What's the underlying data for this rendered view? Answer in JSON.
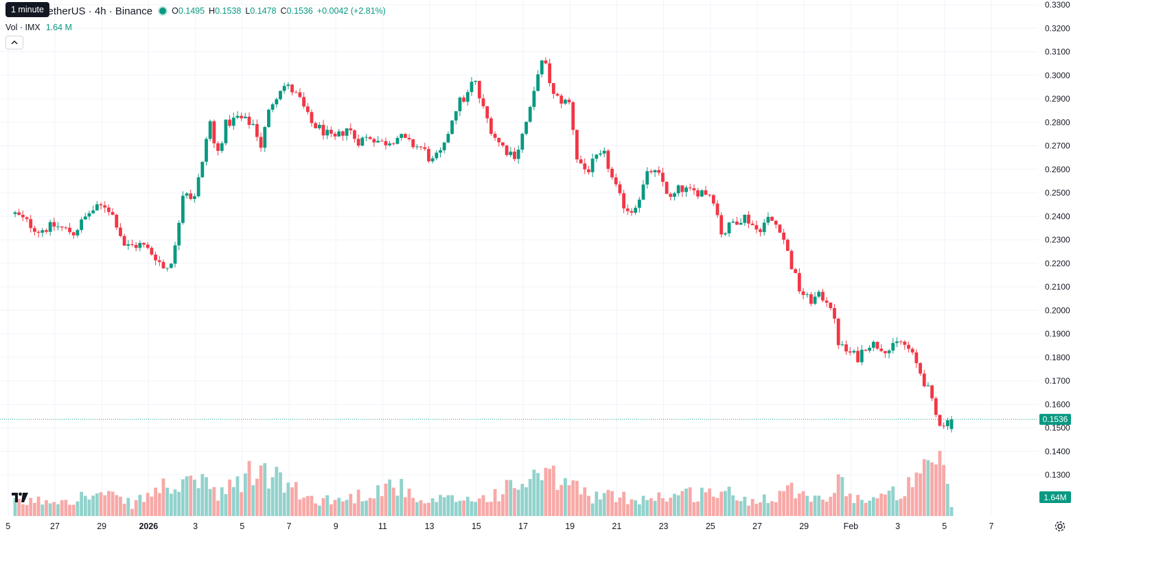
{
  "header": {
    "tooltip": "1 minute",
    "symbol_title": "TetherUS · 4h · Binance",
    "ohlc": [
      {
        "key": "O",
        "value": "0.1495"
      },
      {
        "key": "H",
        "value": "0.1538"
      },
      {
        "key": "L",
        "value": "0.1478"
      },
      {
        "key": "C",
        "value": "0.1536"
      },
      {
        "key": "",
        "value": "+0.0042 (+2.81%)"
      }
    ],
    "volume_label": "Vol · IMX",
    "volume_value": "1.64 M"
  },
  "colors": {
    "up": "#089981",
    "down": "#f23645",
    "up_vol": "#92d2cc",
    "down_vol": "#f7a9a7",
    "grid": "#f0f3fa"
  },
  "icons": {
    "logo": "tradingview-logo-icon",
    "collapse": "chevron-up-icon",
    "settings": "gear-icon"
  },
  "chart_data": {
    "type": "candlestick",
    "interval": "4h",
    "y_axis": {
      "side": "right",
      "min": 0.12,
      "max": 0.33,
      "ticks": [
        "0.1300",
        "0.1400",
        "0.1500",
        "0.1600",
        "0.1700",
        "0.1800",
        "0.1900",
        "0.2000",
        "0.2100",
        "0.2200",
        "0.2300",
        "0.2400",
        "0.2500",
        "0.2600",
        "0.2700",
        "0.2800",
        "0.2900",
        "0.3000",
        "0.3100",
        "0.3200",
        "0.3300"
      ]
    },
    "x_axis": {
      "ticks": [
        {
          "label": "5",
          "day": -0.3
        },
        {
          "label": "27",
          "day": 1.7
        },
        {
          "label": "29",
          "day": 3.7
        },
        {
          "label": "2026",
          "day": 5.7
        },
        {
          "label": "3",
          "day": 7.7
        },
        {
          "label": "5",
          "day": 9.7
        },
        {
          "label": "7",
          "day": 11.7
        },
        {
          "label": "9",
          "day": 13.7
        },
        {
          "label": "11",
          "day": 15.7
        },
        {
          "label": "13",
          "day": 17.7
        },
        {
          "label": "15",
          "day": 19.7
        },
        {
          "label": "17",
          "day": 21.7
        },
        {
          "label": "19",
          "day": 23.7
        },
        {
          "label": "21",
          "day": 25.7
        },
        {
          "label": "23",
          "day": 27.7
        },
        {
          "label": "25",
          "day": 29.7
        },
        {
          "label": "27",
          "day": 31.7
        },
        {
          "label": "29",
          "day": 33.7
        },
        {
          "label": "Feb",
          "day": 35.7
        },
        {
          "label": "3",
          "day": 37.7
        },
        {
          "label": "5",
          "day": 39.7
        },
        {
          "label": "7",
          "day": 41.7
        }
      ]
    },
    "grid": true,
    "last_price": "0.1536",
    "last_volume": "1.64M",
    "price_path": [
      [
        0.0,
        0.241
      ],
      [
        1.0,
        0.234
      ],
      [
        1.7,
        0.236
      ],
      [
        2.5,
        0.233
      ],
      [
        3.2,
        0.242
      ],
      [
        3.9,
        0.245
      ],
      [
        4.3,
        0.238
      ],
      [
        4.7,
        0.227
      ],
      [
        5.4,
        0.228
      ],
      [
        6.0,
        0.223
      ],
      [
        6.4,
        0.217
      ],
      [
        6.8,
        0.224
      ],
      [
        7.2,
        0.253
      ],
      [
        7.6,
        0.247
      ],
      [
        8.0,
        0.262
      ],
      [
        8.3,
        0.282
      ],
      [
        8.6,
        0.265
      ],
      [
        9.0,
        0.279
      ],
      [
        9.5,
        0.282
      ],
      [
        10.2,
        0.279
      ],
      [
        10.5,
        0.27
      ],
      [
        10.9,
        0.287
      ],
      [
        11.4,
        0.296
      ],
      [
        11.8,
        0.294
      ],
      [
        12.2,
        0.289
      ],
      [
        12.6,
        0.28
      ],
      [
        13.2,
        0.276
      ],
      [
        13.6,
        0.272
      ],
      [
        14.2,
        0.278
      ],
      [
        14.6,
        0.272
      ],
      [
        15.2,
        0.274
      ],
      [
        15.7,
        0.271
      ],
      [
        16.4,
        0.274
      ],
      [
        16.8,
        0.271
      ],
      [
        17.4,
        0.269
      ],
      [
        17.8,
        0.263
      ],
      [
        18.3,
        0.268
      ],
      [
        18.6,
        0.28
      ],
      [
        18.9,
        0.288
      ],
      [
        19.3,
        0.291
      ],
      [
        19.6,
        0.299
      ],
      [
        19.9,
        0.288
      ],
      [
        20.3,
        0.278
      ],
      [
        20.6,
        0.272
      ],
      [
        21.0,
        0.268
      ],
      [
        21.4,
        0.266
      ],
      [
        21.8,
        0.279
      ],
      [
        22.1,
        0.288
      ],
      [
        22.4,
        0.306
      ],
      [
        22.7,
        0.303
      ],
      [
        23.0,
        0.291
      ],
      [
        23.4,
        0.289
      ],
      [
        23.7,
        0.288
      ],
      [
        24.0,
        0.265
      ],
      [
        24.4,
        0.259
      ],
      [
        24.8,
        0.264
      ],
      [
        25.2,
        0.266
      ],
      [
        25.5,
        0.256
      ],
      [
        25.9,
        0.246
      ],
      [
        26.3,
        0.242
      ],
      [
        26.7,
        0.249
      ],
      [
        27.1,
        0.26
      ],
      [
        27.6,
        0.256
      ],
      [
        28.0,
        0.247
      ],
      [
        28.4,
        0.252
      ],
      [
        28.9,
        0.25
      ],
      [
        29.3,
        0.251
      ],
      [
        29.8,
        0.249
      ],
      [
        30.2,
        0.232
      ],
      [
        30.7,
        0.238
      ],
      [
        31.2,
        0.24
      ],
      [
        31.7,
        0.234
      ],
      [
        32.2,
        0.239
      ],
      [
        32.7,
        0.235
      ],
      [
        33.1,
        0.221
      ],
      [
        33.5,
        0.209
      ],
      [
        33.9,
        0.204
      ],
      [
        34.4,
        0.206
      ],
      [
        34.8,
        0.204
      ],
      [
        35.2,
        0.185
      ],
      [
        35.6,
        0.182
      ],
      [
        36.0,
        0.18
      ],
      [
        36.4,
        0.186
      ],
      [
        36.9,
        0.185
      ],
      [
        37.4,
        0.183
      ],
      [
        37.8,
        0.187
      ],
      [
        38.2,
        0.183
      ],
      [
        38.6,
        0.175
      ],
      [
        39.0,
        0.166
      ],
      [
        39.4,
        0.153
      ],
      [
        39.7,
        0.152
      ],
      [
        40.0,
        0.1536
      ]
    ],
    "volume_anchors": [
      [
        0.0,
        0.22
      ],
      [
        3.8,
        0.36
      ],
      [
        5.0,
        0.2
      ],
      [
        6.6,
        0.55
      ],
      [
        7.2,
        0.45
      ],
      [
        8.0,
        0.72
      ],
      [
        8.6,
        0.3
      ],
      [
        10.3,
        0.78
      ],
      [
        11.4,
        0.6
      ],
      [
        12.4,
        0.3
      ],
      [
        14.0,
        0.27
      ],
      [
        16.3,
        0.55
      ],
      [
        17.2,
        0.2
      ],
      [
        18.4,
        0.28
      ],
      [
        20.0,
        0.3
      ],
      [
        22.4,
        0.66
      ],
      [
        23.6,
        0.58
      ],
      [
        24.5,
        0.35
      ],
      [
        26.5,
        0.3
      ],
      [
        30.2,
        0.42
      ],
      [
        31.3,
        0.25
      ],
      [
        33.5,
        0.5
      ],
      [
        34.5,
        0.25
      ],
      [
        35.4,
        0.62
      ],
      [
        35.8,
        0.3
      ],
      [
        37.0,
        0.3
      ],
      [
        38.2,
        0.5
      ],
      [
        39.4,
        0.9
      ],
      [
        39.7,
        0.75
      ],
      [
        40.0,
        0.16
      ]
    ]
  }
}
